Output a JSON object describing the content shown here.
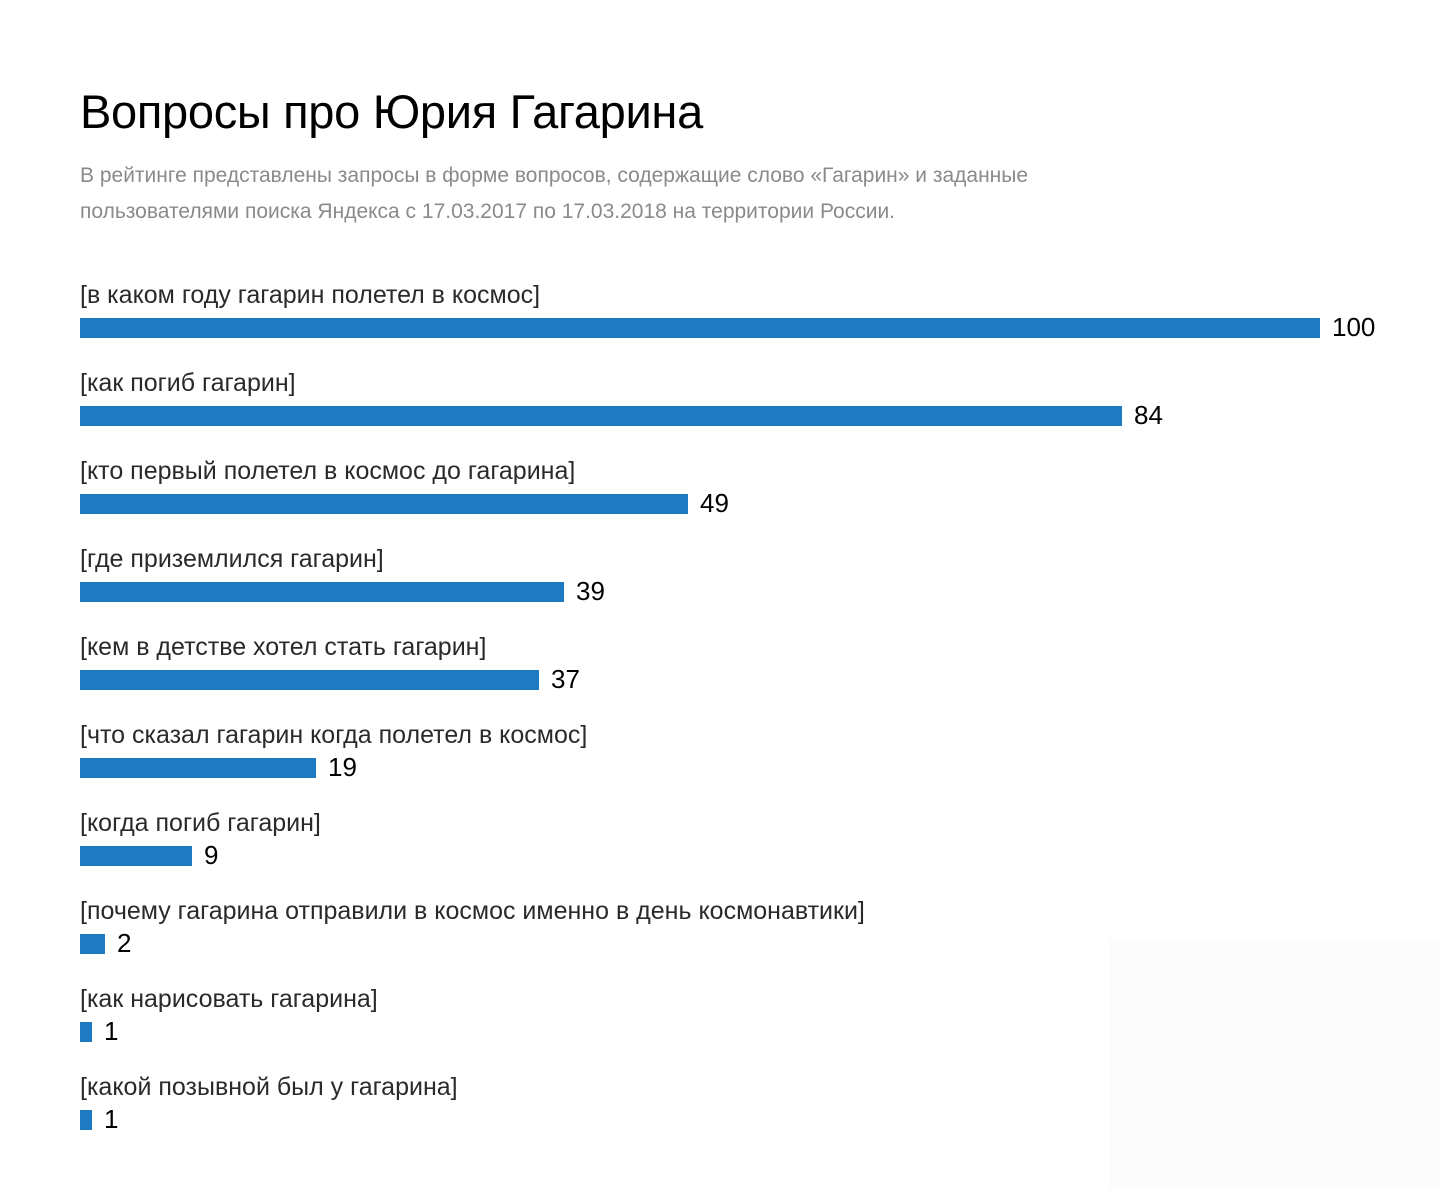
{
  "title": "Вопросы про Юрия Гагарина",
  "subtitle_lines": [
    "В рейтинге представлены запросы в форме вопросов, содержащие слово «Гагарин» и заданные",
    "пользователями поиска Яндекса с 17.03.2017 по 17.03.2018 на территории России."
  ],
  "colors": {
    "bar": "#1f7bc1",
    "subtitle": "#8a8a8a"
  },
  "chart_data": {
    "type": "bar",
    "orientation": "horizontal",
    "title": "Вопросы про Юрия Гагарина",
    "xlim": [
      0,
      100
    ],
    "grid": false,
    "categories": [
      "[в каком году гагарин полетел в космос]",
      "[как погиб гагарин]",
      "[кто первый полетел в космос до гагарина]",
      "[где приземлился гагарин]",
      "[кем в детстве хотел стать гагарин]",
      "[что сказал гагарин когда полетел в космос]",
      "[когда погиб гагарин]",
      "[почему гагарина отправили в космос именно в день космонавтики]",
      "[как нарисовать гагарина]",
      "[какой позывной был у гагарина]"
    ],
    "values": [
      100,
      84,
      49,
      39,
      37,
      19,
      9,
      2,
      1,
      1
    ]
  }
}
